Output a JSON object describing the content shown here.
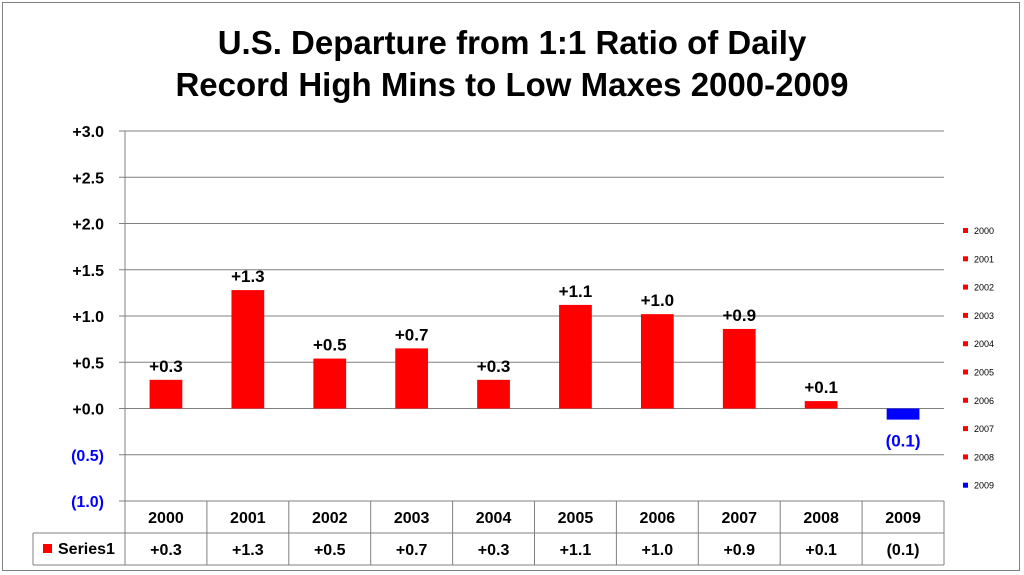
{
  "chart_data": {
    "type": "bar",
    "title_line1": "U.S. Departure from 1:1 Ratio of Daily",
    "title_line2": "Record High Mins to Low Maxes 2000-2009",
    "categories": [
      "2000",
      "2001",
      "2002",
      "2003",
      "2004",
      "2005",
      "2006",
      "2007",
      "2008",
      "2009"
    ],
    "series": [
      {
        "name": "Series1",
        "values": [
          0.31,
          1.28,
          0.54,
          0.65,
          0.31,
          1.12,
          1.02,
          0.86,
          0.08,
          -0.12
        ],
        "labels": [
          "+0.3",
          "+1.3",
          "+0.5",
          "+0.7",
          "+0.3",
          "+1.1",
          "+1.0",
          "+0.9",
          "+0.1",
          "(0.1)"
        ]
      }
    ],
    "ylim": [
      -1.0,
      3.0
    ],
    "y_ticks": [
      3.0,
      2.5,
      2.0,
      1.5,
      1.0,
      0.5,
      0.0,
      -0.5,
      -1.0
    ],
    "y_tick_labels": [
      "+3.0",
      "+2.5",
      "+2.0",
      "+1.5",
      "+1.0",
      "+0.5",
      "+0.0",
      "(0.5)",
      "(1.0)"
    ],
    "grid": true,
    "data_table": true,
    "legend_position": "right",
    "colors": {
      "positive": "#ff0000",
      "negative": "#0000ff",
      "negative_text": "#0000ff",
      "grid": "#808080"
    }
  }
}
